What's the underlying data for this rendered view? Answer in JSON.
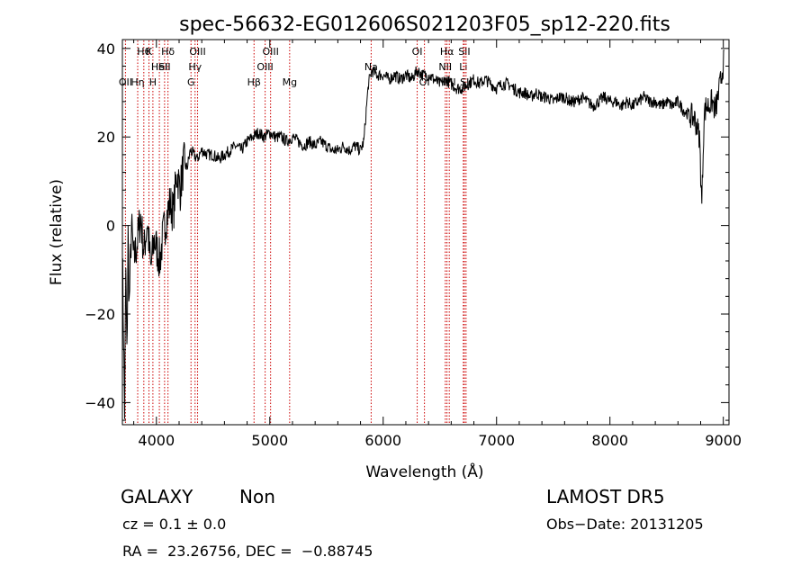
{
  "chart_data": {
    "type": "line",
    "title": "spec-56632-EG012606S021203F05_sp12-220.fits",
    "xlabel": "Wavelength (Å)",
    "ylabel": "Flux (relative)",
    "xlim": [
      3700,
      9050
    ],
    "ylim": [
      -45,
      42
    ],
    "x_ticks": [
      4000,
      5000,
      6000,
      7000,
      8000,
      9000
    ],
    "y_ticks": [
      -40,
      -20,
      0,
      20,
      40
    ],
    "x_tick_labels": [
      "4000",
      "5000",
      "6000",
      "7000",
      "8000",
      "9000"
    ],
    "y_tick_labels": [
      "−40",
      "−20",
      "0",
      "20",
      "40"
    ],
    "grid": false,
    "line_color": "#000000",
    "marker_color": "#cc0000",
    "series": [
      {
        "x": [
          3700,
          3710,
          3720,
          3730,
          3740,
          3750,
          3760,
          3780,
          3800,
          3830,
          3860,
          3890,
          3920,
          3950,
          3980,
          4000,
          4030,
          4060,
          4090,
          4120,
          4150,
          4180,
          4210,
          4240,
          4270,
          4300,
          4330,
          4360,
          4400,
          4450,
          4500,
          4550,
          4600,
          4650,
          4700,
          4750,
          4800,
          4850,
          4900,
          4950,
          5000,
          5050,
          5100,
          5150,
          5200,
          5250,
          5300,
          5350,
          5400,
          5450,
          5500,
          5550,
          5600,
          5650,
          5700,
          5750,
          5800,
          5830,
          5850,
          5870,
          5900,
          5950,
          6000,
          6050,
          6100,
          6150,
          6200,
          6250,
          6300,
          6350,
          6400,
          6450,
          6500,
          6550,
          6600,
          6650,
          6700,
          6750,
          6800,
          6850,
          6900,
          6950,
          7000,
          7050,
          7100,
          7150,
          7200,
          7250,
          7300,
          7350,
          7400,
          7450,
          7500,
          7550,
          7600,
          7650,
          7700,
          7750,
          7800,
          7850,
          7900,
          7950,
          8000,
          8050,
          8100,
          8150,
          8200,
          8250,
          8300,
          8350,
          8400,
          8450,
          8500,
          8550,
          8600,
          8650,
          8700,
          8750,
          8790,
          8800,
          8810,
          8830,
          8850,
          8870,
          8900,
          8930,
          8960,
          8990,
          9010
        ],
        "y": [
          -5,
          -25,
          -42,
          -10,
          -30,
          -2,
          -18,
          0,
          -8,
          -4,
          2,
          -6,
          1,
          -10,
          -3,
          -5,
          -8,
          -2,
          2,
          5,
          3,
          12,
          8,
          14,
          13,
          17,
          16,
          15,
          17,
          16,
          16,
          15,
          16,
          17,
          18,
          17,
          19,
          20,
          21,
          20,
          21,
          20,
          20,
          19,
          20,
          19,
          18,
          19,
          18,
          19,
          18,
          17,
          17,
          18,
          17,
          18,
          17,
          19,
          26,
          32,
          35,
          34,
          34,
          33,
          34,
          33,
          34,
          33,
          35,
          34,
          34,
          33,
          32,
          33,
          32,
          31,
          31,
          32,
          33,
          32,
          33,
          32,
          31,
          32,
          32,
          31,
          30,
          30,
          29,
          30,
          29,
          29,
          28,
          29,
          29,
          28,
          28,
          29,
          28,
          27,
          28,
          29,
          28,
          28,
          27,
          28,
          27,
          28,
          29,
          28,
          28,
          27,
          28,
          27,
          28,
          26,
          25,
          24,
          20,
          12,
          5,
          25,
          27,
          27,
          28,
          26,
          30,
          35,
          38
        ]
      }
    ],
    "line_markers": [
      {
        "x": 3727,
        "label": "OII",
        "row": 3
      },
      {
        "x": 3835,
        "label": "Hη",
        "row": 3
      },
      {
        "x": 3889,
        "label": "Hθ",
        "row": 1
      },
      {
        "x": 3934,
        "label": "K",
        "row": 1
      },
      {
        "x": 3969,
        "label": "H",
        "row": 3
      },
      {
        "x": 4026,
        "label": "HeI",
        "row": 2
      },
      {
        "x": 4072,
        "label": "SII",
        "row": 2
      },
      {
        "x": 4102,
        "label": "Hδ",
        "row": 1
      },
      {
        "x": 4305,
        "label": "G",
        "row": 3
      },
      {
        "x": 4341,
        "label": "Hγ",
        "row": 2
      },
      {
        "x": 4363,
        "label": "OIII",
        "row": 1
      },
      {
        "x": 4861,
        "label": "Hβ",
        "row": 3
      },
      {
        "x": 4959,
        "label": "OIII",
        "row": 2
      },
      {
        "x": 5007,
        "label": "OIII",
        "row": 1
      },
      {
        "x": 5175,
        "label": "Mg",
        "row": 3
      },
      {
        "x": 5894,
        "label": "Na",
        "row": 2
      },
      {
        "x": 6300,
        "label": "OI",
        "row": 1
      },
      {
        "x": 6364,
        "label": "OI",
        "row": 3
      },
      {
        "x": 6548,
        "label": "NII",
        "row": 2
      },
      {
        "x": 6563,
        "label": "Hα",
        "row": 1
      },
      {
        "x": 6583,
        "label": "NII",
        "row": 3
      },
      {
        "x": 6707,
        "label": "Li",
        "row": 2
      },
      {
        "x": 6716,
        "label": "SII",
        "row": 1
      },
      {
        "x": 6731,
        "label": "SII",
        "row": 3
      }
    ]
  },
  "info": {
    "object_class": "GALAXY",
    "subclass": "Non",
    "redshift": "cz = 0.1 ± 0.0",
    "coords": "RA =  23.26756, DEC =  −0.88745",
    "survey": "LAMOST DR5",
    "obs_date": "Obs−Date: 20131205"
  }
}
